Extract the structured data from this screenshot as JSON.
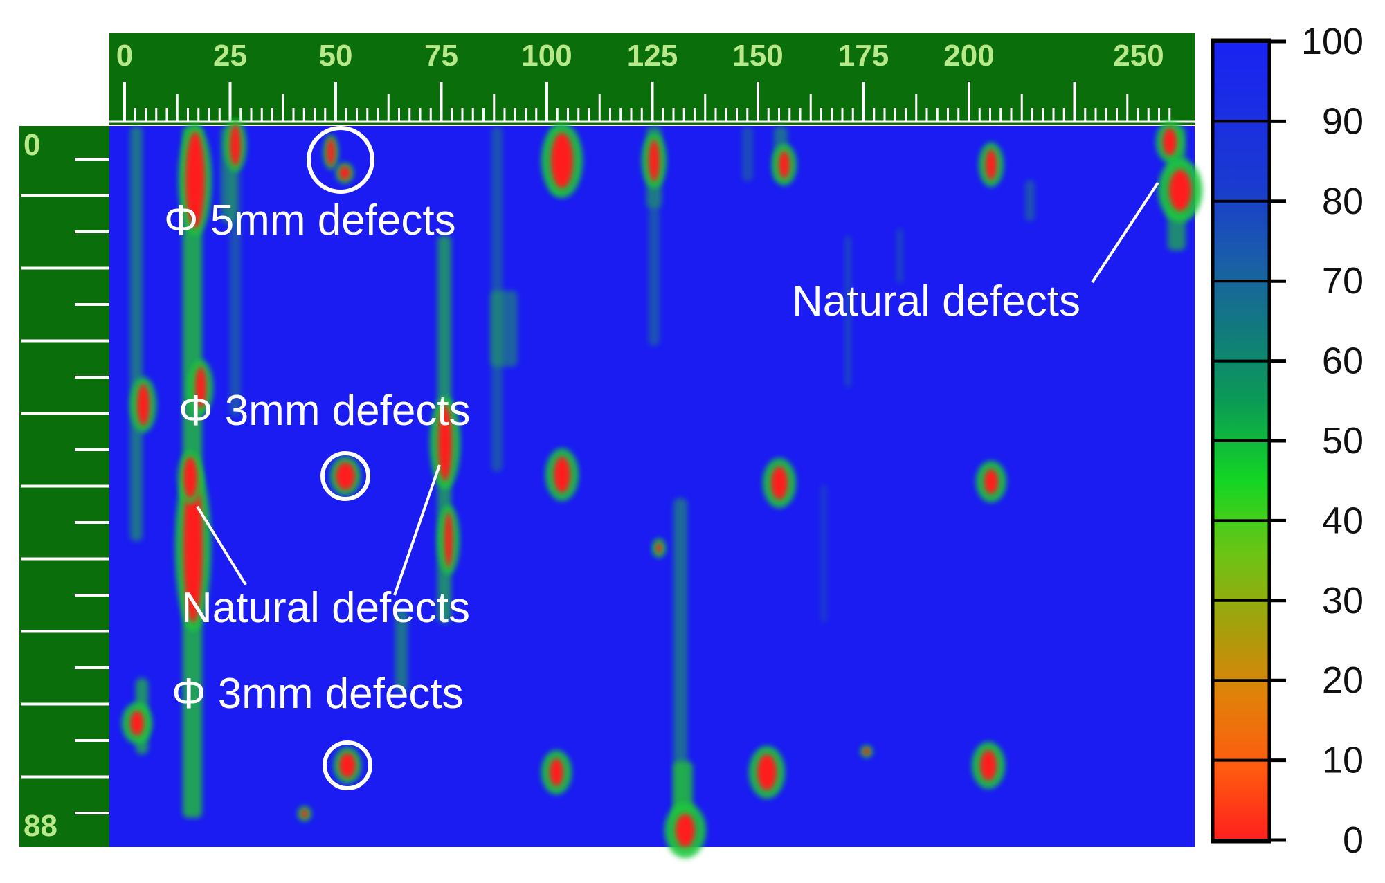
{
  "x_ruler": {
    "labels": [
      {
        "text": "0",
        "value": 0
      },
      {
        "text": "25",
        "value": 25
      },
      {
        "text": "50",
        "value": 50
      },
      {
        "text": "75",
        "value": 75
      },
      {
        "text": "100",
        "value": 100
      },
      {
        "text": "125",
        "value": 125
      },
      {
        "text": "150",
        "value": 150
      },
      {
        "text": "175",
        "value": 175
      },
      {
        "text": "200",
        "value": 200
      },
      {
        "text": "250",
        "value": 250
      }
    ],
    "range": [
      0,
      245
    ]
  },
  "y_ruler": {
    "labels": [
      {
        "text": "0",
        "value": 0
      },
      {
        "text": "88",
        "value": 88
      }
    ],
    "range": [
      0,
      88
    ]
  },
  "colorbar": {
    "labels": [
      "100",
      "90",
      "80",
      "70",
      "60",
      "50",
      "40",
      "30",
      "20",
      "10",
      "0"
    ],
    "colors": [
      "#1a2cf2",
      "#1a3bcd",
      "#1a5aa8",
      "#127a80",
      "#0b9a55",
      "#06b838",
      "#1bd71a",
      "#6bc912",
      "#9aaa0c",
      "#c88a08",
      "#ef6a05",
      "#ff4a10",
      "#ff2020"
    ]
  },
  "annotations": [
    {
      "text": "Φ 5mm  defects"
    },
    {
      "text": "Φ 3mm  defects"
    },
    {
      "text": "Φ 3mm  defects"
    },
    {
      "text": "Natural defects"
    },
    {
      "text": "Natural defects"
    }
  ],
  "colors": {
    "ruler_green": "#0a6e0a",
    "scan_blue": "#1a1cf2",
    "defect_red": "#ff1a1a",
    "defect_green": "#22c03a",
    "annotation_white": "#ffffff"
  }
}
